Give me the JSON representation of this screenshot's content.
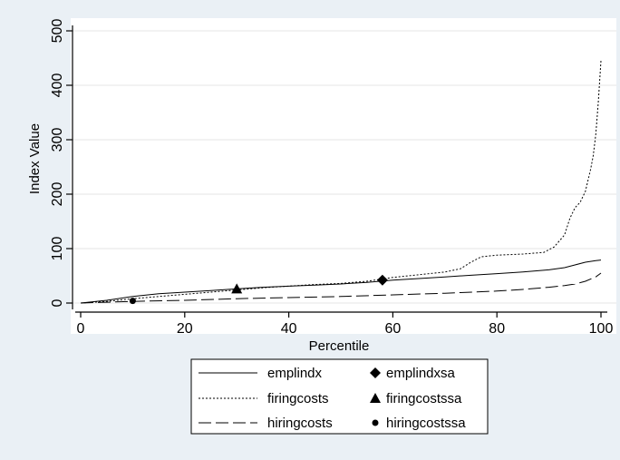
{
  "chart_data": {
    "type": "line",
    "xlabel": "Percentile",
    "ylabel": "Index Value",
    "xlim": [
      0,
      100
    ],
    "ylim": [
      0,
      500
    ],
    "x_ticks": [
      0,
      20,
      40,
      60,
      80,
      100
    ],
    "y_ticks": [
      0,
      100,
      200,
      300,
      400,
      500
    ],
    "grid": "horizontal",
    "legend_position": "bottom",
    "series": [
      {
        "name": "emplindx",
        "style": "solid",
        "points": [
          [
            0,
            0
          ],
          [
            5,
            5
          ],
          [
            10,
            12
          ],
          [
            15,
            17
          ],
          [
            20,
            20
          ],
          [
            25,
            23
          ],
          [
            30,
            26
          ],
          [
            35,
            29
          ],
          [
            40,
            31
          ],
          [
            45,
            33
          ],
          [
            50,
            35
          ],
          [
            55,
            38
          ],
          [
            60,
            42
          ],
          [
            65,
            45
          ],
          [
            70,
            48
          ],
          [
            75,
            51
          ],
          [
            80,
            54
          ],
          [
            85,
            57
          ],
          [
            90,
            61
          ],
          [
            93,
            65
          ],
          [
            95,
            70
          ],
          [
            97,
            75
          ],
          [
            99,
            78
          ],
          [
            100,
            79
          ]
        ]
      },
      {
        "name": "firingcosts",
        "style": "short-dash",
        "points": [
          [
            0,
            0
          ],
          [
            5,
            3
          ],
          [
            10,
            8
          ],
          [
            15,
            12
          ],
          [
            20,
            16
          ],
          [
            25,
            20
          ],
          [
            30,
            24
          ],
          [
            35,
            28
          ],
          [
            40,
            31
          ],
          [
            45,
            34
          ],
          [
            50,
            36
          ],
          [
            55,
            40
          ],
          [
            60,
            47
          ],
          [
            65,
            52
          ],
          [
            70,
            57
          ],
          [
            73,
            63
          ],
          [
            75,
            75
          ],
          [
            77,
            85
          ],
          [
            80,
            88
          ],
          [
            85,
            90
          ],
          [
            89,
            93
          ],
          [
            91,
            103
          ],
          [
            93,
            125
          ],
          [
            94,
            155
          ],
          [
            95,
            175
          ],
          [
            96,
            185
          ],
          [
            97,
            205
          ],
          [
            98,
            245
          ],
          [
            98.5,
            270
          ],
          [
            99,
            310
          ],
          [
            99.5,
            370
          ],
          [
            100,
            445
          ]
        ]
      },
      {
        "name": "hiringcosts",
        "style": "long-dash",
        "points": [
          [
            0,
            0
          ],
          [
            10,
            3
          ],
          [
            20,
            5
          ],
          [
            30,
            8
          ],
          [
            40,
            10
          ],
          [
            50,
            12
          ],
          [
            60,
            15
          ],
          [
            70,
            18
          ],
          [
            80,
            22
          ],
          [
            85,
            25
          ],
          [
            90,
            29
          ],
          [
            93,
            32
          ],
          [
            95,
            35
          ],
          [
            97,
            40
          ],
          [
            99,
            48
          ],
          [
            100,
            55
          ]
        ]
      }
    ],
    "markers": [
      {
        "name": "emplindxsa",
        "shape": "diamond",
        "x": 58,
        "y": 42
      },
      {
        "name": "firingcostssa",
        "shape": "triangle",
        "x": 30,
        "y": 26
      },
      {
        "name": "hiringcostssa",
        "shape": "circle",
        "x": 10,
        "y": 4
      }
    ]
  }
}
